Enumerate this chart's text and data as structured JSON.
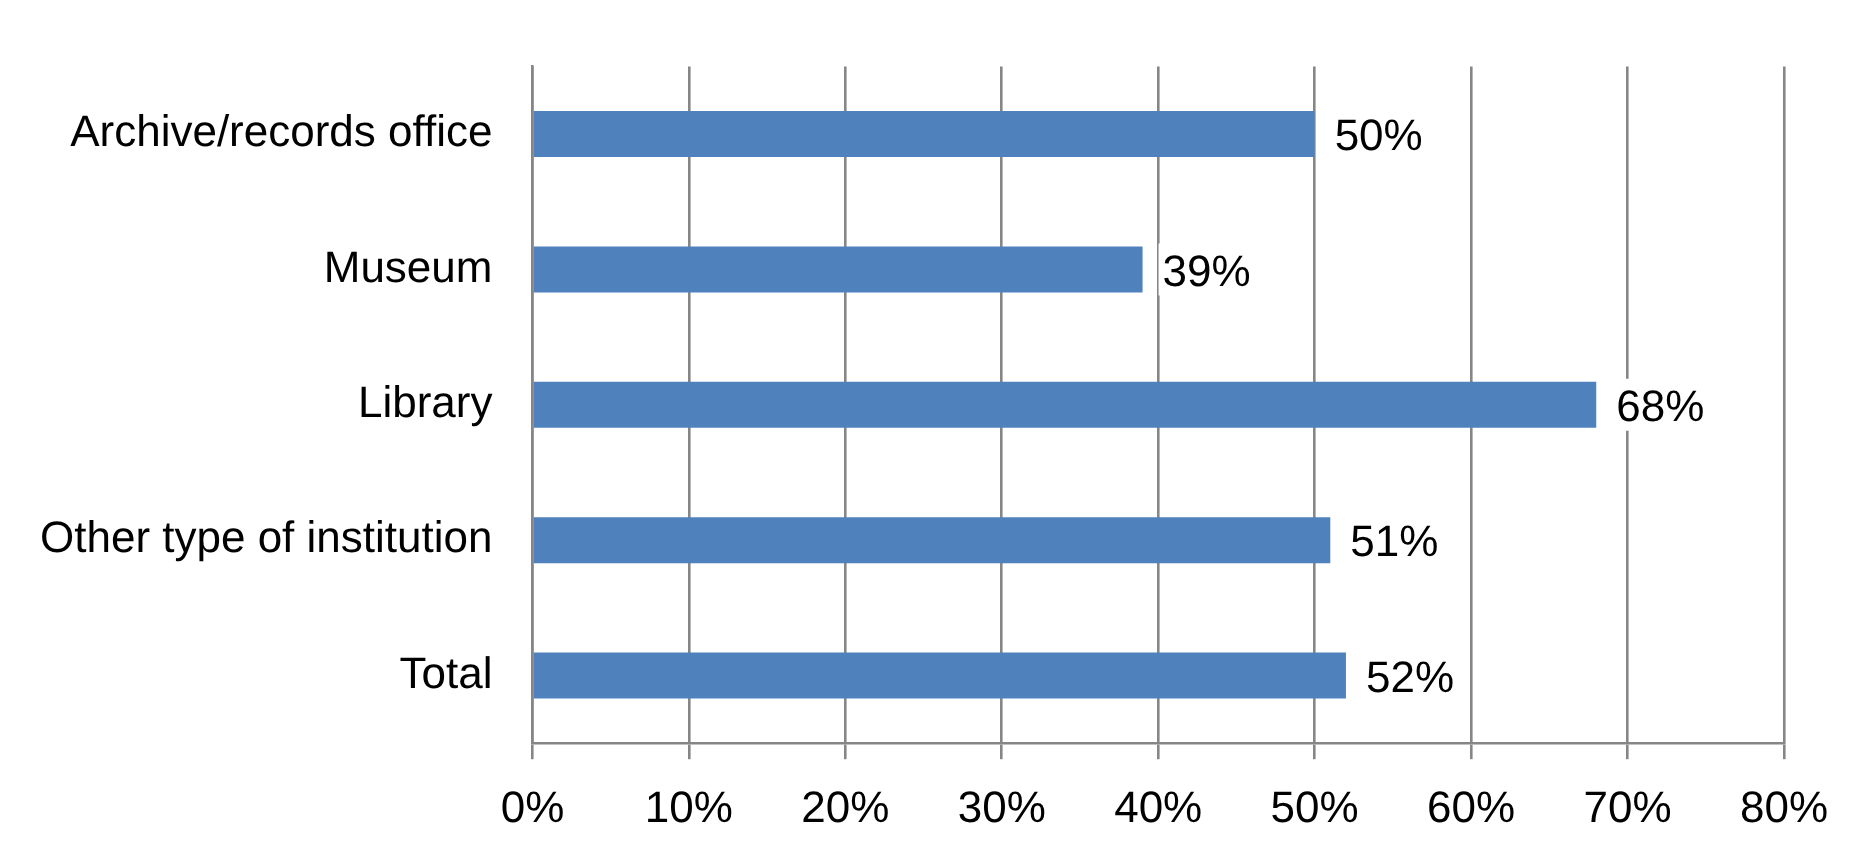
{
  "chart_data": {
    "type": "bar",
    "orientation": "horizontal",
    "categories": [
      "Archive/records office",
      "Museum",
      "Library",
      "Other type of institution",
      "Total"
    ],
    "values": [
      50,
      39,
      68,
      51,
      52
    ],
    "value_labels": [
      "50%",
      "39%",
      "68%",
      "51%",
      "52%"
    ],
    "color": "#4f81bd",
    "xlim": [
      0,
      80
    ],
    "xticks": [
      {
        "value": 0,
        "label": "0%"
      },
      {
        "value": 10,
        "label": "10%"
      },
      {
        "value": 20,
        "label": "20%"
      },
      {
        "value": 30,
        "label": "30%"
      },
      {
        "value": 40,
        "label": "40%"
      },
      {
        "value": 50,
        "label": "50%"
      },
      {
        "value": 60,
        "label": "60%"
      },
      {
        "value": 70,
        "label": "70%"
      },
      {
        "value": 80,
        "label": "80%"
      }
    ],
    "grid": "x",
    "legend": false
  }
}
